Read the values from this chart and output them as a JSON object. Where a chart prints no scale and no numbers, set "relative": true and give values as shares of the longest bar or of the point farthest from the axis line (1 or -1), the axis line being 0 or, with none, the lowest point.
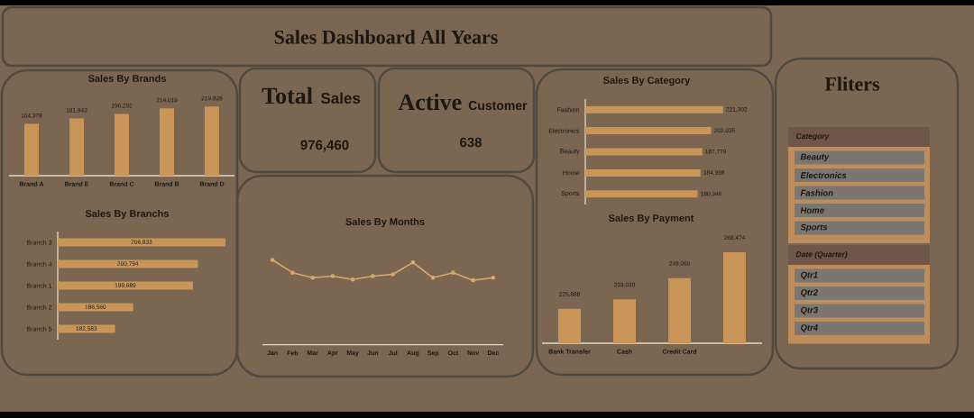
{
  "chart_data": [
    {
      "type": "other",
      "title": "Sales Dashboard All Years"
    },
    {
      "type": "bar",
      "title": "Sales By Brands",
      "categories": [
        "Brand A",
        "Brand E",
        "Brand C",
        "Brand B",
        "Brand D"
      ],
      "values": [
        164378,
        181943,
        196292,
        214019,
        219828
      ],
      "value_labels": [
        "164,378",
        "181,943",
        "196,292",
        "214,019",
        "219,828"
      ],
      "color": "#c99559",
      "tick_labels": "x"
    },
    {
      "type": "other",
      "title": "**Total** Sales",
      "annotations": [
        "976,460"
      ]
    },
    {
      "type": "other",
      "title": "**Active** Customer",
      "annotations": [
        "638"
      ]
    },
    {
      "type": "bar",
      "orientation": "horizontal",
      "title": "Sales By Category",
      "categories": [
        "Fashion",
        "Electronics",
        "Beauty",
        "Home",
        "Sports"
      ],
      "values": [
        221302,
        202035,
        187779,
        184998,
        180346
      ],
      "value_labels": [
        "221,302",
        "202,035",
        "187,779",
        "184,998",
        "180,346"
      ],
      "color": "#c99559",
      "tick_labels": "y"
    },
    {
      "type": "other",
      "title": "Fliters"
    },
    {
      "type": "other",
      "title": "Category",
      "annotations": [
        "Beauty",
        "Electronics",
        "Fashion",
        "Home",
        "Sports"
      ]
    },
    {
      "type": "other",
      "title": "Date (Quarter)",
      "annotations": [
        "Qtr1",
        "Qtr2",
        "Qtr3",
        "Qtr4"
      ]
    },
    {
      "type": "bar",
      "orientation": "horizontal",
      "title": "Sales By Branchs",
      "categories": [
        "Branch 3",
        "Branch 4",
        "Branch 1",
        "Branch 2",
        "Branch 5"
      ],
      "values": [
        206833,
        200794,
        199689,
        186560,
        182583
      ],
      "value_labels": [
        "206,833",
        "200,794",
        "199,689",
        "186,560",
        "182,583"
      ],
      "xlim": [
        170000,
        206833
      ],
      "color": "#c99559",
      "tick_labels": "y"
    },
    {
      "type": "line",
      "title": "Sales By Months",
      "relative": true,
      "categories": [
        "Jan",
        "Feb",
        "Mar",
        "Apr",
        "May",
        "Jun",
        "Jul",
        "Aug",
        "Sep",
        "Oct",
        "Nov",
        "Dec"
      ],
      "values": [
        1,
        0.85,
        0.79,
        0.81,
        0.77,
        0.81,
        0.83,
        0.97,
        0.79,
        0.85,
        0.76,
        0.79
      ],
      "color": "#d9a86c",
      "marker": "circle",
      "tick_labels": "x"
    },
    {
      "type": "bar",
      "title": "Sales By Payment",
      "categories": [
        "Bank Transfer",
        "Cash",
        "Credit Card",
        null
      ],
      "values": [
        225888,
        233038,
        249060,
        268474
      ],
      "value_labels": [
        "225,888",
        "233,038",
        "249,060",
        "268,474"
      ],
      "ylim": [
        200000,
        268474
      ],
      "color": "#c99559",
      "tick_labels": "x"
    }
  ]
}
